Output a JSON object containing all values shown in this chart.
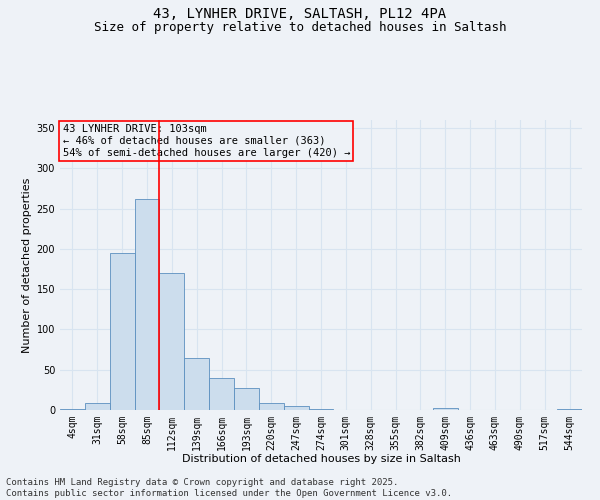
{
  "title_line1": "43, LYNHER DRIVE, SALTASH, PL12 4PA",
  "title_line2": "Size of property relative to detached houses in Saltash",
  "xlabel": "Distribution of detached houses by size in Saltash",
  "ylabel": "Number of detached properties",
  "annotation_line1": "43 LYNHER DRIVE: 103sqm",
  "annotation_line2": "← 46% of detached houses are smaller (363)",
  "annotation_line3": "54% of semi-detached houses are larger (420) →",
  "footer_line1": "Contains HM Land Registry data © Crown copyright and database right 2025.",
  "footer_line2": "Contains public sector information licensed under the Open Government Licence v3.0.",
  "bin_labels": [
    "4sqm",
    "31sqm",
    "58sqm",
    "85sqm",
    "112sqm",
    "139sqm",
    "166sqm",
    "193sqm",
    "220sqm",
    "247sqm",
    "274sqm",
    "301sqm",
    "328sqm",
    "355sqm",
    "382sqm",
    "409sqm",
    "436sqm",
    "463sqm",
    "490sqm",
    "517sqm",
    "544sqm"
  ],
  "bar_values": [
    1,
    9,
    195,
    262,
    170,
    65,
    40,
    27,
    9,
    5,
    1,
    0,
    0,
    0,
    0,
    2,
    0,
    0,
    0,
    0,
    1
  ],
  "bar_color": "#ccdded",
  "bar_edge_color": "#5b8fbf",
  "vline_x": 3.5,
  "vline_color": "red",
  "annotation_box_color": "red",
  "background_color": "#eef2f7",
  "ylim": [
    0,
    360
  ],
  "yticks": [
    0,
    50,
    100,
    150,
    200,
    250,
    300,
    350
  ],
  "grid_color": "#d8e4f0",
  "title_fontsize": 10,
  "subtitle_fontsize": 9,
  "axis_label_fontsize": 8,
  "tick_fontsize": 7,
  "annotation_fontsize": 7.5,
  "footer_fontsize": 6.5
}
